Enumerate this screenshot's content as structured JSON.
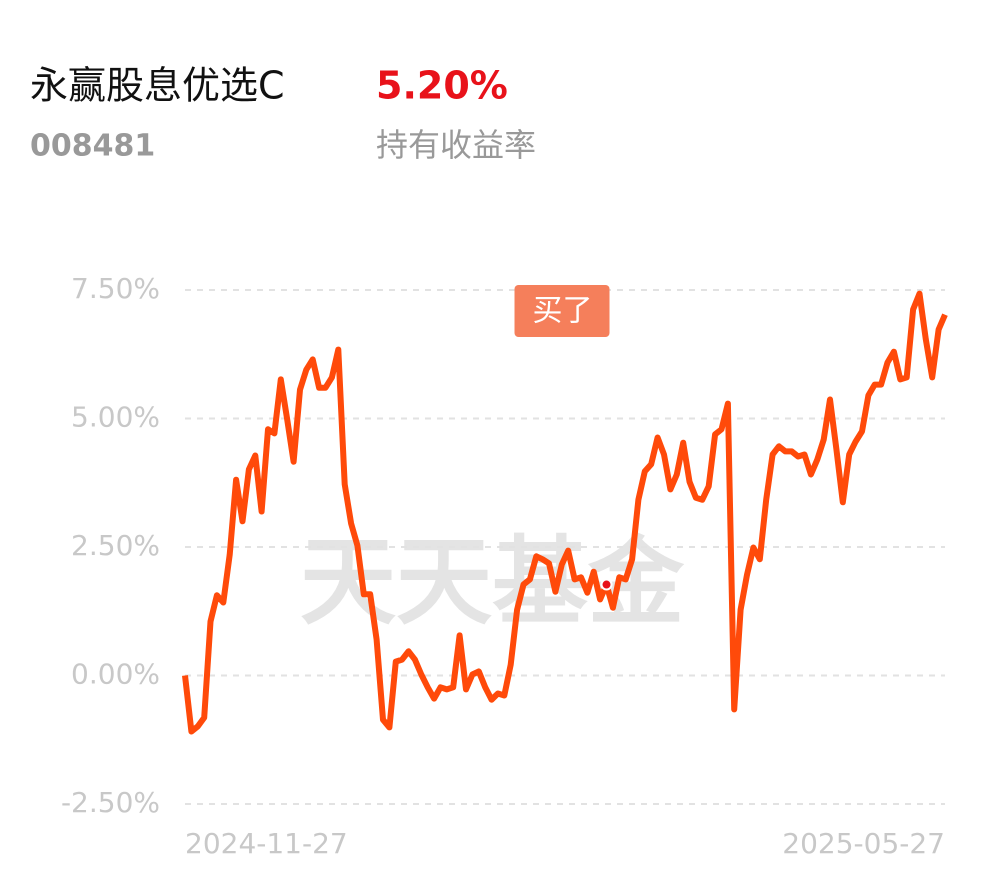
{
  "header": {
    "title": "永赢股息优选C",
    "return_value": "5.20%",
    "fund_code": "008481",
    "return_caption": "持有收益率"
  },
  "chart_data": {
    "type": "line",
    "watermark": "天天基金",
    "categories": [
      "2024-11-27",
      null,
      null,
      null,
      null,
      null,
      null,
      null,
      null,
      null,
      null,
      null,
      null,
      null,
      null,
      null,
      null,
      null,
      null,
      null,
      null,
      null,
      null,
      null,
      null,
      null,
      null,
      null,
      null,
      null,
      null,
      null,
      null,
      null,
      null,
      null,
      null,
      null,
      null,
      null,
      null,
      null,
      null,
      null,
      null,
      null,
      null,
      null,
      null,
      null,
      null,
      null,
      null,
      null,
      null,
      null,
      null,
      null,
      null,
      null,
      null,
      null,
      null,
      null,
      null,
      null,
      null,
      null,
      null,
      null,
      null,
      null,
      null,
      null,
      null,
      null,
      null,
      null,
      null,
      null,
      null,
      null,
      null,
      null,
      null,
      null,
      null,
      null,
      null,
      null,
      null,
      null,
      null,
      null,
      null,
      null,
      null,
      null,
      null,
      null,
      null,
      null,
      null,
      null,
      null,
      null,
      null,
      null,
      null,
      null,
      null,
      null,
      null,
      null,
      null,
      null,
      null,
      null,
      null,
      "2025-05-27"
    ],
    "series": [
      {
        "name": "持有收益率",
        "color": "#ff4a0a",
        "values": [
          0,
          -1.09,
          -0.99,
          -0.82,
          1.05,
          1.56,
          1.42,
          2.35,
          3.81,
          3.0,
          4.01,
          4.28,
          3.19,
          4.79,
          4.71,
          5.76,
          4.98,
          4.16,
          5.56,
          5.95,
          6.15,
          5.6,
          5.6,
          5.8,
          6.34,
          3.72,
          2.96,
          2.53,
          1.58,
          1.58,
          0.7,
          -0.86,
          -1.01,
          0.27,
          0.31,
          0.47,
          0.31,
          0.02,
          -0.23,
          -0.45,
          -0.23,
          -0.27,
          -0.23,
          0.78,
          -0.27,
          0.02,
          0.08,
          -0.23,
          -0.47,
          -0.35,
          -0.39,
          0.21,
          1.28,
          1.77,
          1.87,
          2.32,
          2.26,
          2.18,
          1.63,
          2.16,
          2.43,
          1.87,
          1.91,
          1.61,
          2.02,
          1.48,
          1.77,
          1.32,
          1.91,
          1.87,
          2.26,
          3.42,
          3.97,
          4.11,
          4.63,
          4.3,
          3.62,
          3.91,
          4.53,
          3.77,
          3.46,
          3.42,
          3.68,
          4.69,
          4.79,
          5.29,
          -0.66,
          1.28,
          1.96,
          2.49,
          2.26,
          3.42,
          4.3,
          4.46,
          4.36,
          4.36,
          4.26,
          4.3,
          3.91,
          4.2,
          4.59,
          5.37,
          4.4,
          3.37,
          4.3,
          4.55,
          4.75,
          5.45,
          5.66,
          5.66,
          6.09,
          6.3,
          5.76,
          5.8,
          7.12,
          7.43,
          6.54,
          5.8,
          6.73,
          7.02
        ]
      }
    ],
    "buy_marker": {
      "label": "买了",
      "index": 66
    },
    "ylim": [
      -2.5,
      7.5
    ],
    "yticks": [
      {
        "value": 7.5,
        "label": "7.50%"
      },
      {
        "value": 5,
        "label": "5.00%"
      },
      {
        "value": 2.5,
        "label": "2.50%"
      },
      {
        "value": 0,
        "label": "0.00%"
      },
      {
        "value": -2.5,
        "label": "-2.50%"
      }
    ],
    "grid": true
  }
}
